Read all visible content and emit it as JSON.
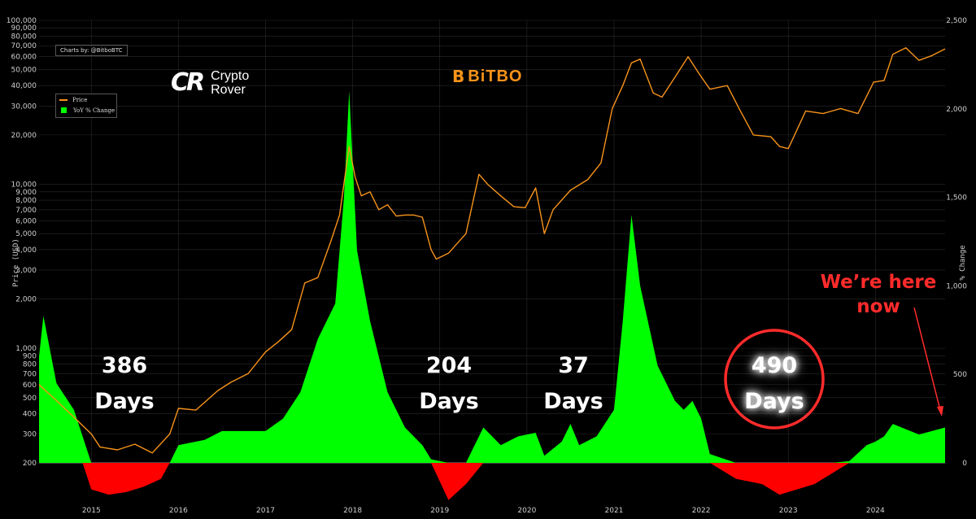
{
  "credit": "Charts by: @BitboBTC",
  "brand_left": {
    "mark": "CR",
    "line1": "Crypto",
    "line2": "Rover"
  },
  "brand_right": {
    "mark": "B",
    "name": "BiTBO"
  },
  "legend": {
    "price_label": "Price",
    "yoy_label": "YoY % Change"
  },
  "annotations": [
    {
      "number": "386",
      "unit": "Days"
    },
    {
      "number": "204",
      "unit": "Days"
    },
    {
      "number": "37",
      "unit": "Days"
    },
    {
      "number": "490",
      "unit": "Days"
    }
  ],
  "callout": {
    "line1": "We’re here",
    "line2": "now"
  },
  "chart_data": {
    "type": "line",
    "ylabel": "Price (USD)",
    "y2label": "% Change",
    "y_scale": "log",
    "ylim": [
      200,
      100000
    ],
    "y2lim": [
      0,
      2500
    ],
    "x_range": [
      2014.4,
      2024.8
    ],
    "x_ticks": [
      "2015",
      "2016",
      "2017",
      "2018",
      "2019",
      "2020",
      "2021",
      "2022",
      "2023",
      "2024"
    ],
    "y_ticks": [
      "200",
      "300",
      "400",
      "500",
      "600",
      "700",
      "800",
      "900",
      "1,000",
      "2,000",
      "3,000",
      "4,000",
      "5,000",
      "6,000",
      "7,000",
      "8,000",
      "9,000",
      "10,000",
      "20,000",
      "30,000",
      "40,000",
      "50,000",
      "60,000",
      "70,000",
      "80,000",
      "90,000",
      "100,000"
    ],
    "y2_ticks": [
      "0",
      "500",
      "1,000",
      "1,500",
      "2,000",
      "2,500"
    ],
    "grid": true,
    "legend_position": "top-left",
    "colors": {
      "price": "#f7931a",
      "yoy_positive": "#00ff00",
      "yoy_negative": "#ff0000",
      "callout": "#ff2b2b"
    },
    "series": [
      {
        "name": "Price",
        "x": [
          2014.4,
          2014.6,
          2014.8,
          2015.0,
          2015.1,
          2015.3,
          2015.5,
          2015.7,
          2015.9,
          2016.0,
          2016.2,
          2016.45,
          2016.6,
          2016.8,
          2017.0,
          2017.15,
          2017.3,
          2017.45,
          2017.6,
          2017.75,
          2017.85,
          2017.96,
          2018.03,
          2018.1,
          2018.2,
          2018.3,
          2018.4,
          2018.5,
          2018.6,
          2018.7,
          2018.8,
          2018.9,
          2018.96,
          2019.1,
          2019.3,
          2019.45,
          2019.55,
          2019.7,
          2019.85,
          2019.98,
          2020.1,
          2020.2,
          2020.3,
          2020.5,
          2020.7,
          2020.85,
          2020.98,
          2021.1,
          2021.2,
          2021.3,
          2021.45,
          2021.55,
          2021.7,
          2021.85,
          2021.98,
          2022.1,
          2022.3,
          2022.45,
          2022.6,
          2022.8,
          2022.9,
          2023.0,
          2023.2,
          2023.4,
          2023.6,
          2023.8,
          2023.98,
          2024.1,
          2024.2,
          2024.35,
          2024.5,
          2024.65,
          2024.8
        ],
        "values": [
          600,
          480,
          380,
          300,
          250,
          240,
          260,
          230,
          300,
          430,
          420,
          550,
          620,
          700,
          950,
          1100,
          1300,
          2500,
          2700,
          4500,
          6500,
          17000,
          11000,
          8500,
          9000,
          7000,
          7500,
          6400,
          6500,
          6500,
          6300,
          4000,
          3500,
          3800,
          5000,
          11500,
          10000,
          8500,
          7300,
          7200,
          9500,
          5000,
          7000,
          9200,
          10700,
          13500,
          29000,
          40000,
          55000,
          58000,
          36000,
          34000,
          45000,
          60000,
          47000,
          38000,
          40000,
          28000,
          20000,
          19500,
          17000,
          16500,
          28000,
          27000,
          29000,
          27000,
          42000,
          43000,
          62000,
          68000,
          57000,
          61000,
          67000
        ]
      },
      {
        "name": "YoY % Change",
        "x": [
          2014.4,
          2014.45,
          2014.6,
          2014.8,
          2014.9,
          2015.0,
          2015.2,
          2015.4,
          2015.6,
          2015.8,
          2015.9,
          2016.0,
          2016.3,
          2016.5,
          2016.8,
          2017.0,
          2017.2,
          2017.4,
          2017.6,
          2017.8,
          2017.9,
          2017.96,
          2018.05,
          2018.2,
          2018.4,
          2018.6,
          2018.8,
          2018.9,
          2019.1,
          2019.3,
          2019.5,
          2019.7,
          2019.9,
          2020.1,
          2020.2,
          2020.4,
          2020.5,
          2020.6,
          2020.8,
          2021.0,
          2021.1,
          2021.2,
          2021.3,
          2021.5,
          2021.7,
          2021.8,
          2021.9,
          2022.0,
          2022.1,
          2022.4,
          2022.7,
          2022.9,
          2023.1,
          2023.3,
          2023.5,
          2023.7,
          2023.9,
          2024.0,
          2024.1,
          2024.2,
          2024.5,
          2024.8
        ],
        "values": [
          600,
          830,
          450,
          300,
          150,
          -50,
          -60,
          -55,
          -45,
          -30,
          0,
          100,
          130,
          180,
          180,
          180,
          250,
          400,
          700,
          900,
          1500,
          2100,
          1200,
          800,
          400,
          200,
          100,
          20,
          -70,
          -40,
          200,
          100,
          150,
          170,
          40,
          120,
          220,
          100,
          150,
          300,
          800,
          1400,
          1000,
          550,
          350,
          300,
          350,
          250,
          50,
          -30,
          -40,
          -60,
          -50,
          -40,
          -20,
          10,
          100,
          120,
          150,
          220,
          160,
          200
        ]
      }
    ]
  }
}
